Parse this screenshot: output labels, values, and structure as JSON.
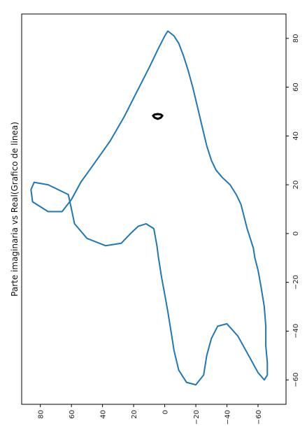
{
  "chart_data": {
    "type": "line",
    "title": "Parte imaginaria vs Real(Grafico de linea)",
    "xlabel": "",
    "ylabel": "",
    "orientation": "rotated 90°: data x runs top→bottom along the right axis, data y runs right→left along the bottom axis",
    "xlim": [
      -70,
      90
    ],
    "ylim": [
      -78,
      92
    ],
    "x_ticks": [
      80,
      60,
      40,
      20,
      0,
      -20,
      -40,
      -60
    ],
    "x_tick_labels": [
      "80",
      "60",
      "40",
      "20",
      "0",
      "−20",
      "−40",
      "−60"
    ],
    "y_ticks": [
      80,
      60,
      40,
      20,
      0,
      -20,
      -40,
      -60
    ],
    "y_tick_labels": [
      "80",
      "60",
      "40",
      "20",
      "0",
      "−20",
      "−40",
      "−60"
    ],
    "grid": false,
    "legend": "none",
    "series": [
      {
        "color": "#1f77b4",
        "closed": true,
        "x": [
          83,
          81,
          78,
          73,
          67,
          60,
          52,
          44,
          36,
          30,
          26,
          23,
          20,
          16,
          12,
          7,
          2,
          -2,
          -6,
          -10,
          -15,
          -22,
          -30,
          -38,
          -46,
          -53,
          -58,
          -60,
          -57,
          -50,
          -42,
          -37,
          -38,
          -43,
          -50,
          -58,
          -62,
          -61,
          -56,
          -48,
          -40,
          -32,
          -25,
          -18,
          -10,
          -5,
          2,
          4,
          3,
          0,
          -4,
          -5,
          -2,
          4,
          10,
          16,
          20,
          21,
          18,
          13,
          9,
          9,
          14,
          21,
          29,
          38,
          48,
          58,
          68,
          76,
          81
        ],
        "y": [
          -2,
          -6,
          -9,
          -12,
          -15,
          -18,
          -21,
          -24,
          -27,
          -30,
          -33,
          -37,
          -42,
          -46,
          -49,
          -51,
          -53,
          -55,
          -57,
          -58,
          -60,
          -62,
          -64,
          -65,
          -65,
          -66,
          -66,
          -64,
          -60,
          -54,
          -47,
          -40,
          -34,
          -30,
          -27,
          -25,
          -20,
          -14,
          -9,
          -6,
          -4,
          -2,
          0,
          2,
          4,
          5,
          7,
          12,
          17,
          22,
          28,
          38,
          50,
          58,
          60,
          62,
          75,
          84,
          86,
          85,
          75,
          66,
          60,
          54,
          45,
          35,
          26,
          18,
          10,
          4,
          0
        ]
      },
      {
        "color": "#000000",
        "closed": true,
        "x": [
          49,
          48.8,
          48.3,
          47.5,
          47,
          47.5,
          48.3,
          48.8,
          49
        ],
        "y": [
          4.5,
          6.5,
          7.5,
          6.5,
          4.5,
          2.5,
          1.5,
          2.5,
          4.5
        ]
      }
    ]
  }
}
